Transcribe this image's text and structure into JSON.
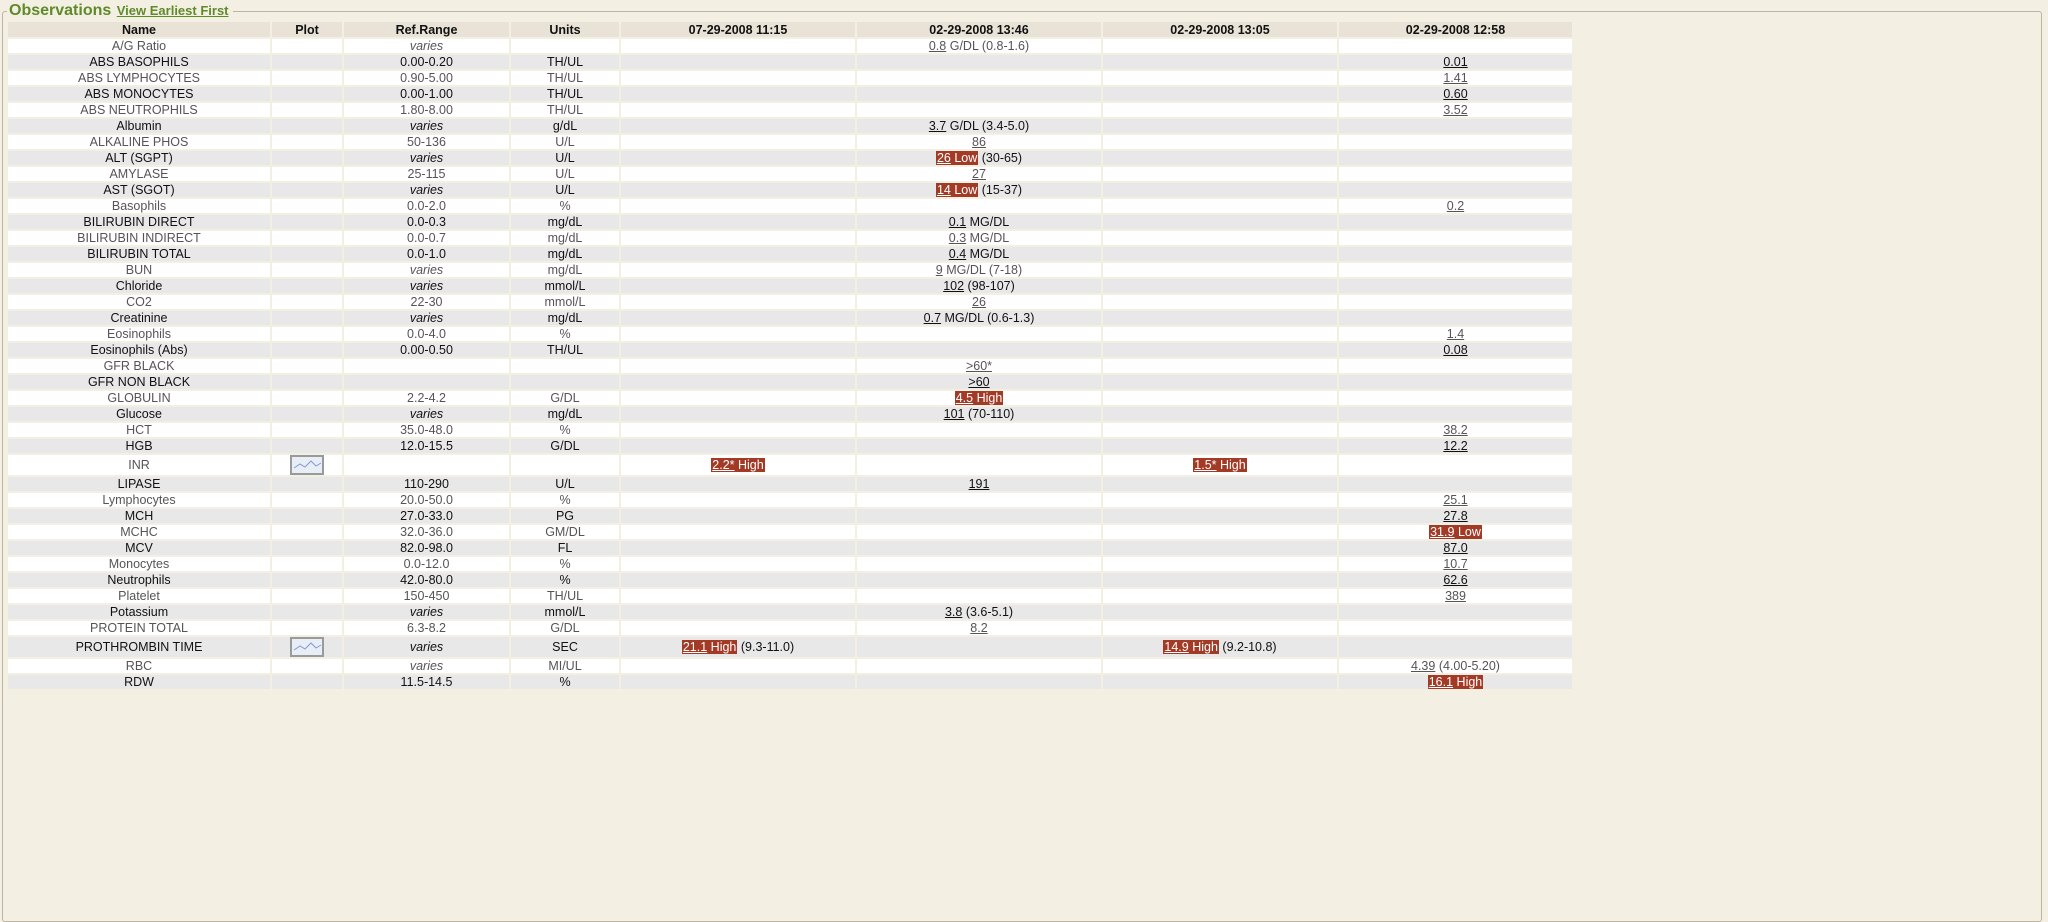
{
  "legend": {
    "title": "Observations",
    "link": "View Earliest First"
  },
  "columns": [
    "Name",
    "Plot",
    "Ref.Range",
    "Units",
    "07-29-2008 11:15",
    "02-29-2008 13:46",
    "02-29-2008 13:05",
    "02-29-2008 12:58"
  ],
  "colors": {
    "flag_bg": "#a33a26",
    "legend_green": "#5f8a2a"
  },
  "rows": [
    {
      "name": "A/G Ratio",
      "ref": "varies",
      "units": "",
      "vals": [
        null,
        {
          "v": "0.8",
          "extra": "G/DL (0.8-1.6)"
        },
        null,
        null
      ]
    },
    {
      "name": "ABS BASOPHILS",
      "ref": "0.00-0.20",
      "units": "TH/UL",
      "vals": [
        null,
        null,
        null,
        {
          "v": "0.01"
        }
      ]
    },
    {
      "name": "ABS LYMPHOCYTES",
      "ref": "0.90-5.00",
      "units": "TH/UL",
      "vals": [
        null,
        null,
        null,
        {
          "v": "1.41"
        }
      ]
    },
    {
      "name": "ABS MONOCYTES",
      "ref": "0.00-1.00",
      "units": "TH/UL",
      "vals": [
        null,
        null,
        null,
        {
          "v": "0.60"
        }
      ]
    },
    {
      "name": "ABS NEUTROPHILS",
      "ref": "1.80-8.00",
      "units": "TH/UL",
      "vals": [
        null,
        null,
        null,
        {
          "v": "3.52"
        }
      ]
    },
    {
      "name": "Albumin",
      "ref": "varies",
      "units": "g/dL",
      "vals": [
        null,
        {
          "v": "3.7",
          "extra": "G/DL (3.4-5.0)"
        },
        null,
        null
      ]
    },
    {
      "name": "ALKALINE PHOS",
      "ref": "50-136",
      "units": "U/L",
      "vals": [
        null,
        {
          "v": "86"
        },
        null,
        null
      ]
    },
    {
      "name": "ALT (SGPT)",
      "ref": "varies",
      "units": "U/L",
      "vals": [
        null,
        {
          "v": "26",
          "flag": "Low",
          "extra": "(30-65)"
        },
        null,
        null
      ]
    },
    {
      "name": "AMYLASE",
      "ref": "25-115",
      "units": "U/L",
      "vals": [
        null,
        {
          "v": "27"
        },
        null,
        null
      ]
    },
    {
      "name": "AST (SGOT)",
      "ref": "varies",
      "units": "U/L",
      "vals": [
        null,
        {
          "v": "14",
          "flag": "Low",
          "extra": "(15-37)"
        },
        null,
        null
      ]
    },
    {
      "name": "Basophils",
      "ref": "0.0-2.0",
      "units": "%",
      "vals": [
        null,
        null,
        null,
        {
          "v": "0.2"
        }
      ]
    },
    {
      "name": "BILIRUBIN DIRECT",
      "ref": "0.0-0.3",
      "units": "mg/dL",
      "vals": [
        null,
        {
          "v": "0.1",
          "extra": "MG/DL"
        },
        null,
        null
      ]
    },
    {
      "name": "BILIRUBIN INDIRECT",
      "ref": "0.0-0.7",
      "units": "mg/dL",
      "vals": [
        null,
        {
          "v": "0.3",
          "extra": "MG/DL"
        },
        null,
        null
      ]
    },
    {
      "name": "BILIRUBIN TOTAL",
      "ref": "0.0-1.0",
      "units": "mg/dL",
      "vals": [
        null,
        {
          "v": "0.4",
          "extra": "MG/DL"
        },
        null,
        null
      ]
    },
    {
      "name": "BUN",
      "ref": "varies",
      "units": "mg/dL",
      "vals": [
        null,
        {
          "v": "9",
          "extra": "MG/DL (7-18)"
        },
        null,
        null
      ]
    },
    {
      "name": "Chloride",
      "ref": "varies",
      "units": "mmol/L",
      "vals": [
        null,
        {
          "v": "102",
          "extra": "(98-107)"
        },
        null,
        null
      ]
    },
    {
      "name": "CO2",
      "ref": "22-30",
      "units": "mmol/L",
      "vals": [
        null,
        {
          "v": "26"
        },
        null,
        null
      ]
    },
    {
      "name": "Creatinine",
      "ref": "varies",
      "units": "mg/dL",
      "vals": [
        null,
        {
          "v": "0.7",
          "extra": "MG/DL (0.6-1.3)"
        },
        null,
        null
      ]
    },
    {
      "name": "Eosinophils",
      "ref": "0.0-4.0",
      "units": "%",
      "vals": [
        null,
        null,
        null,
        {
          "v": "1.4"
        }
      ]
    },
    {
      "name": "Eosinophils (Abs)",
      "ref": "0.00-0.50",
      "units": "TH/UL",
      "vals": [
        null,
        null,
        null,
        {
          "v": "0.08"
        }
      ]
    },
    {
      "name": "GFR BLACK",
      "ref": "",
      "units": "",
      "vals": [
        null,
        {
          "v": ">60*"
        },
        null,
        null
      ]
    },
    {
      "name": "GFR NON BLACK",
      "ref": "",
      "units": "",
      "vals": [
        null,
        {
          "v": ">60"
        },
        null,
        null
      ]
    },
    {
      "name": "GLOBULIN",
      "ref": "2.2-4.2",
      "units": "G/DL",
      "vals": [
        null,
        {
          "v": "4.5",
          "flag": "High"
        },
        null,
        null
      ]
    },
    {
      "name": "Glucose",
      "ref": "varies",
      "units": "mg/dL",
      "vals": [
        null,
        {
          "v": "101",
          "extra": "(70-110)"
        },
        null,
        null
      ]
    },
    {
      "name": "HCT",
      "ref": "35.0-48.0",
      "units": "%",
      "vals": [
        null,
        null,
        null,
        {
          "v": "38.2"
        }
      ]
    },
    {
      "name": "HGB",
      "ref": "12.0-15.5",
      "units": "G/DL",
      "vals": [
        null,
        null,
        null,
        {
          "v": "12.2"
        }
      ]
    },
    {
      "name": "INR",
      "plot": true,
      "ref": "",
      "units": "",
      "vals": [
        {
          "v": "2.2*",
          "flag": "High"
        },
        null,
        {
          "v": "1.5*",
          "flag": "High"
        },
        null
      ]
    },
    {
      "name": "LIPASE",
      "ref": "110-290",
      "units": "U/L",
      "vals": [
        null,
        {
          "v": "191"
        },
        null,
        null
      ]
    },
    {
      "name": "Lymphocytes",
      "ref": "20.0-50.0",
      "units": "%",
      "vals": [
        null,
        null,
        null,
        {
          "v": "25.1"
        }
      ]
    },
    {
      "name": "MCH",
      "ref": "27.0-33.0",
      "units": "PG",
      "vals": [
        null,
        null,
        null,
        {
          "v": "27.8"
        }
      ]
    },
    {
      "name": "MCHC",
      "ref": "32.0-36.0",
      "units": "GM/DL",
      "vals": [
        null,
        null,
        null,
        {
          "v": "31.9",
          "flag": "Low"
        }
      ]
    },
    {
      "name": "MCV",
      "ref": "82.0-98.0",
      "units": "FL",
      "vals": [
        null,
        null,
        null,
        {
          "v": "87.0"
        }
      ]
    },
    {
      "name": "Monocytes",
      "ref": "0.0-12.0",
      "units": "%",
      "vals": [
        null,
        null,
        null,
        {
          "v": "10.7"
        }
      ]
    },
    {
      "name": "Neutrophils",
      "ref": "42.0-80.0",
      "units": "%",
      "vals": [
        null,
        null,
        null,
        {
          "v": "62.6"
        }
      ]
    },
    {
      "name": "Platelet",
      "ref": "150-450",
      "units": "TH/UL",
      "vals": [
        null,
        null,
        null,
        {
          "v": "389"
        }
      ]
    },
    {
      "name": "Potassium",
      "ref": "varies",
      "units": "mmol/L",
      "vals": [
        null,
        {
          "v": "3.8",
          "extra": "(3.6-5.1)"
        },
        null,
        null
      ]
    },
    {
      "name": "PROTEIN TOTAL",
      "ref": "6.3-8.2",
      "units": "G/DL",
      "vals": [
        null,
        {
          "v": "8.2"
        },
        null,
        null
      ]
    },
    {
      "name": "PROTHROMBIN TIME",
      "plot": true,
      "ref": "varies",
      "units": "SEC",
      "vals": [
        {
          "v": "21.1",
          "flag": "High",
          "extra": "(9.3-11.0)"
        },
        null,
        {
          "v": "14.9",
          "flag": "High",
          "extra": "(9.2-10.8)"
        },
        null
      ]
    },
    {
      "name": "RBC",
      "ref": "varies",
      "units": "MI/UL",
      "vals": [
        null,
        null,
        null,
        {
          "v": "4.39",
          "extra": "(4.00-5.20)"
        }
      ]
    },
    {
      "name": "RDW",
      "ref": "11.5-14.5",
      "units": "%",
      "vals": [
        null,
        null,
        null,
        {
          "v": "16.1",
          "flag": "High"
        }
      ]
    }
  ]
}
